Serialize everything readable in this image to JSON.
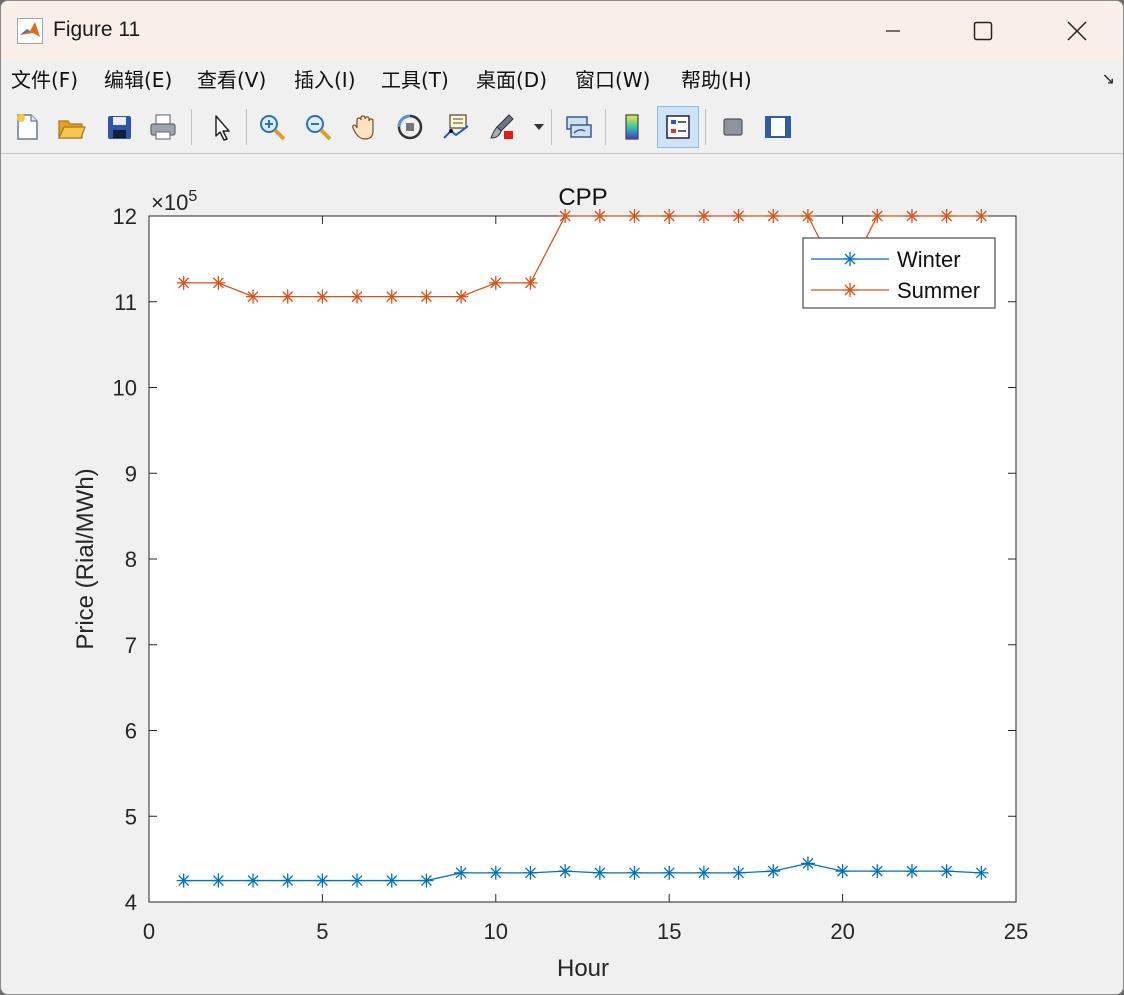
{
  "window": {
    "title": "Figure 11",
    "controls": {
      "minimize": "—",
      "maximize": "☐",
      "close": "✕"
    }
  },
  "menu": {
    "items": [
      "文件(F)",
      "编辑(E)",
      "查看(V)",
      "插入(I)",
      "工具(T)",
      "桌面(D)",
      "窗口(W)",
      "帮助(H)"
    ],
    "dock_glyph": "↘"
  },
  "toolbar": {
    "tools": [
      "new-figure",
      "open-file",
      "save",
      "print",
      "edit-plot",
      "zoom-in",
      "zoom-out",
      "pan",
      "rotate-3d",
      "data-cursor",
      "brush",
      "brush-menu",
      "link-plot",
      "insert-colorbar",
      "insert-legend",
      "hide-plot-tools",
      "show-plot-tools"
    ],
    "active": "insert-legend"
  },
  "chart_data": {
    "type": "line",
    "title": "CPP",
    "xlabel": "Hour",
    "ylabel": "Price (Rial/MWh)",
    "y_exponent_label": "×10",
    "y_exponent_power": "5",
    "xlim": [
      0,
      25
    ],
    "ylim": [
      4,
      12
    ],
    "x_ticks": [
      0,
      5,
      10,
      15,
      20,
      25
    ],
    "y_ticks": [
      4,
      5,
      6,
      7,
      8,
      9,
      10,
      11,
      12
    ],
    "grid": false,
    "legend_position": "top-right",
    "x": [
      1,
      2,
      3,
      4,
      5,
      6,
      7,
      8,
      9,
      10,
      11,
      12,
      13,
      14,
      15,
      16,
      17,
      18,
      19,
      20,
      21,
      22,
      23,
      24
    ],
    "series": [
      {
        "name": "Winter",
        "color": "#0072bd",
        "marker": "asterisk",
        "values": [
          4.25,
          4.25,
          4.25,
          4.25,
          4.25,
          4.25,
          4.25,
          4.25,
          4.34,
          4.34,
          4.34,
          4.36,
          4.34,
          4.34,
          4.34,
          4.34,
          4.34,
          4.36,
          4.45,
          4.36,
          4.36,
          4.36,
          4.36,
          4.34
        ]
      },
      {
        "name": "Summer",
        "color": "#d95319",
        "marker": "asterisk",
        "values": [
          11.22,
          11.22,
          11.06,
          11.06,
          11.06,
          11.06,
          11.06,
          11.06,
          11.06,
          11.22,
          11.22,
          12.0,
          12.0,
          12.0,
          12.0,
          12.0,
          12.0,
          12.0,
          12.0,
          11.2,
          12.0,
          12.0,
          12.0,
          12.0
        ]
      }
    ]
  }
}
